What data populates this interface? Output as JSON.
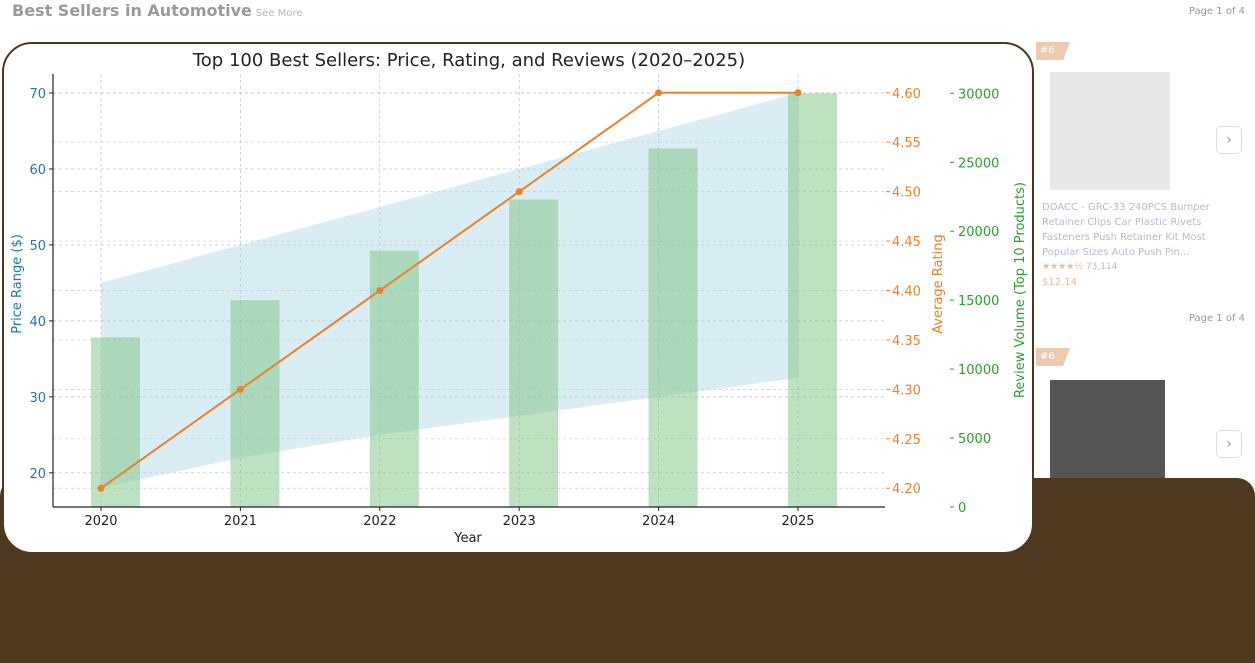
{
  "background_page": {
    "section_title": "Best Sellers in Automotive",
    "see_more": "See More",
    "page_indicators": [
      "Page 1 of 4",
      "Page 1 of 4"
    ],
    "badges": [
      "#6",
      "#6"
    ],
    "product": {
      "title": "DOACC - GRC-33 240PCS Bumper Retainer Clips Car Plastic Rivets Fasteners Push Retainer Kit Most Popular Sizes Auto Push Pin...",
      "stars": "★★★★½",
      "review_count": "73,114",
      "price": "$12.14"
    },
    "next_icon": "chevron-right-icon",
    "colors": {
      "panel": "#4e3920"
    }
  },
  "chart_data": {
    "type": "bar+line+area",
    "title": "Top 100 Best Sellers: Price, Rating, and Reviews (2020–2025)",
    "xlabel": "Year",
    "categories": [
      "2020",
      "2021",
      "2022",
      "2023",
      "2024",
      "2025"
    ],
    "price_range": {
      "ylabel": "Price Range ($)",
      "ylim": [
        15.5,
        72.5
      ],
      "ticks": [
        "20",
        "30",
        "40",
        "50",
        "60",
        "70"
      ],
      "low": [
        18,
        22,
        25,
        27.5,
        30,
        32.5
      ],
      "high": [
        45,
        50,
        55,
        60,
        65,
        70
      ],
      "color": "#add8e6"
    },
    "rating": {
      "ylabel": "Average Rating",
      "ylim": [
        4.181,
        4.619
      ],
      "ticks": [
        "4.20",
        "4.25",
        "4.30",
        "4.35",
        "4.40",
        "4.45",
        "4.50",
        "4.55",
        "4.60"
      ],
      "values": [
        4.2,
        4.3,
        4.4,
        4.5,
        4.6,
        4.6
      ],
      "color": "#e8822c"
    },
    "reviews": {
      "ylabel": "Review Volume (Top 10 Products)",
      "ylim": [
        0,
        31400
      ],
      "ticks": [
        "0",
        "5000",
        "10000",
        "15000",
        "20000",
        "25000",
        "30000"
      ],
      "values": [
        12300,
        15000,
        18600,
        22300,
        26000,
        30000
      ],
      "color": "#7dc383"
    },
    "grid": true,
    "axis_colors": {
      "price": "#1f77b4",
      "rating": "#e8822c",
      "reviews": "#2ca02c"
    }
  }
}
